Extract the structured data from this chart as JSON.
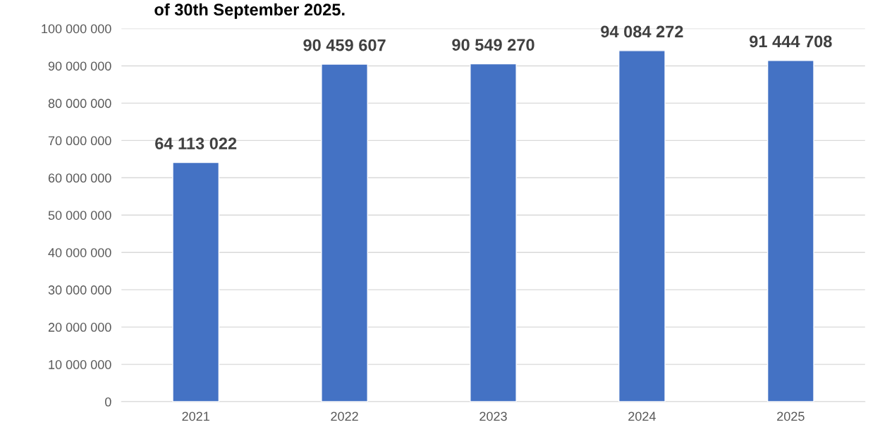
{
  "chart_data": {
    "type": "bar",
    "title": "of 30th September 2025.",
    "categories": [
      "2021",
      "2022",
      "2023",
      "2024",
      "2025"
    ],
    "values": [
      64113022,
      90459607,
      90549270,
      94084272,
      91444708
    ],
    "value_labels": [
      "64 113 022",
      "90 459 607",
      "90 549 270",
      "94 084 272",
      "91 444 708"
    ],
    "color": "#4472c4",
    "ylim": [
      0,
      100000000
    ],
    "yticks": [
      {
        "value": 0,
        "label": "0"
      },
      {
        "value": 10000000,
        "label": "10 000 000"
      },
      {
        "value": 20000000,
        "label": "20 000 000"
      },
      {
        "value": 30000000,
        "label": "30 000 000"
      },
      {
        "value": 40000000,
        "label": "40 000 000"
      },
      {
        "value": 50000000,
        "label": "50 000 000"
      },
      {
        "value": 60000000,
        "label": "60 000 000"
      },
      {
        "value": 70000000,
        "label": "70 000 000"
      },
      {
        "value": 80000000,
        "label": "80 000 000"
      },
      {
        "value": 90000000,
        "label": "90 000 000"
      },
      {
        "value": 100000000,
        "label": "100 000 000"
      }
    ],
    "grid": "y",
    "legend": false
  }
}
